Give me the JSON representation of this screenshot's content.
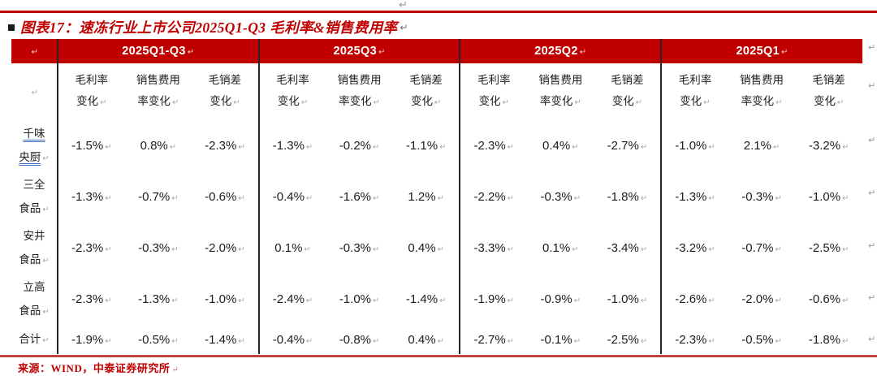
{
  "title": "图表17：速冻行业上市公司2025Q1-Q3 毛利率&销售费用率",
  "marks": {
    "pilcrow": "↵"
  },
  "colors": {
    "accent_red": "#c00000",
    "band_red": "#c00000",
    "bottom_rule_red": "#bf4340",
    "link_blue": "#4472c4",
    "divider_black": "#262626"
  },
  "table": {
    "groups": [
      "2025Q1-Q3",
      "2025Q3",
      "2025Q2",
      "2025Q1"
    ],
    "subcols": [
      {
        "line1": "毛利率",
        "line2": "变化"
      },
      {
        "line1": "销售费用",
        "line2": "率变化"
      },
      {
        "line1": "毛销差",
        "line2": "变化"
      }
    ],
    "rows": [
      {
        "name": "千味央厨",
        "name_lines": [
          "千味",
          "央厨"
        ],
        "link": true,
        "values": [
          "-1.5%",
          "0.8%",
          "-2.3%",
          "-1.3%",
          "-0.2%",
          "-1.1%",
          "-2.3%",
          "0.4%",
          "-2.7%",
          "-1.0%",
          "2.1%",
          "-3.2%"
        ]
      },
      {
        "name": "三全食品",
        "name_lines": [
          "三全",
          "食品"
        ],
        "link": false,
        "values": [
          "-1.3%",
          "-0.7%",
          "-0.6%",
          "-0.4%",
          "-1.6%",
          "1.2%",
          "-2.2%",
          "-0.3%",
          "-1.8%",
          "-1.3%",
          "-0.3%",
          "-1.0%"
        ]
      },
      {
        "name": "安井食品",
        "name_lines": [
          "安井",
          "食品"
        ],
        "link": false,
        "values": [
          "-2.3%",
          "-0.3%",
          "-2.0%",
          "0.1%",
          "-0.3%",
          "0.4%",
          "-3.3%",
          "0.1%",
          "-3.4%",
          "-3.2%",
          "-0.7%",
          "-2.5%"
        ]
      },
      {
        "name": "立高食品",
        "name_lines": [
          "立高",
          "食品"
        ],
        "link": false,
        "values": [
          "-2.3%",
          "-1.3%",
          "-1.0%",
          "-2.4%",
          "-1.0%",
          "-1.4%",
          "-1.9%",
          "-0.9%",
          "-1.0%",
          "-2.6%",
          "-2.0%",
          "-0.6%"
        ]
      },
      {
        "name": "合计",
        "name_lines": [
          "合计"
        ],
        "link": false,
        "values": [
          "-1.9%",
          "-0.5%",
          "-1.4%",
          "-0.4%",
          "-0.8%",
          "0.4%",
          "-2.7%",
          "-0.1%",
          "-2.5%",
          "-2.3%",
          "-0.5%",
          "-1.8%"
        ]
      }
    ]
  },
  "source": "来源：WIND，中泰证券研究所"
}
